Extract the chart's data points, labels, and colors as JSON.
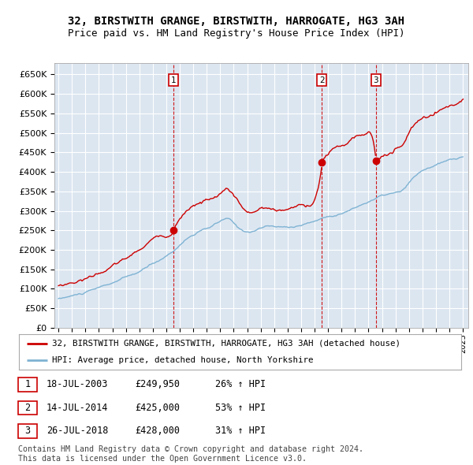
{
  "title": "32, BIRSTWITH GRANGE, BIRSTWITH, HARROGATE, HG3 3AH",
  "subtitle": "Price paid vs. HM Land Registry's House Price Index (HPI)",
  "ylim": [
    0,
    680000
  ],
  "yticks": [
    0,
    50000,
    100000,
    150000,
    200000,
    250000,
    300000,
    350000,
    400000,
    450000,
    500000,
    550000,
    600000,
    650000
  ],
  "ytick_labels": [
    "£0",
    "£50K",
    "£100K",
    "£150K",
    "£200K",
    "£250K",
    "£300K",
    "£350K",
    "£400K",
    "£450K",
    "£500K",
    "£550K",
    "£600K",
    "£650K"
  ],
  "house_color": "#cc0000",
  "hpi_color": "#7fb3d3",
  "sale_marker_color": "#cc0000",
  "vline_color": "#cc0000",
  "background_color": "#dce6f1",
  "grid_color": "#ffffff",
  "transactions": [
    {
      "label": "1",
      "date": 2003.54,
      "price": 249950
    },
    {
      "label": "2",
      "date": 2014.54,
      "price": 425000
    },
    {
      "label": "3",
      "date": 2018.54,
      "price": 428000
    }
  ],
  "legend_entries": [
    "32, BIRSTWITH GRANGE, BIRSTWITH, HARROGATE, HG3 3AH (detached house)",
    "HPI: Average price, detached house, North Yorkshire"
  ],
  "table_rows": [
    [
      "1",
      "18-JUL-2003",
      "£249,950",
      "26% ↑ HPI"
    ],
    [
      "2",
      "14-JUL-2014",
      "£425,000",
      "53% ↑ HPI"
    ],
    [
      "3",
      "26-JUL-2018",
      "£428,000",
      "31% ↑ HPI"
    ]
  ],
  "footer": "Contains HM Land Registry data © Crown copyright and database right 2024.\nThis data is licensed under the Open Government Licence v3.0.",
  "title_fontsize": 10,
  "subtitle_fontsize": 9,
  "axis_fontsize": 8
}
